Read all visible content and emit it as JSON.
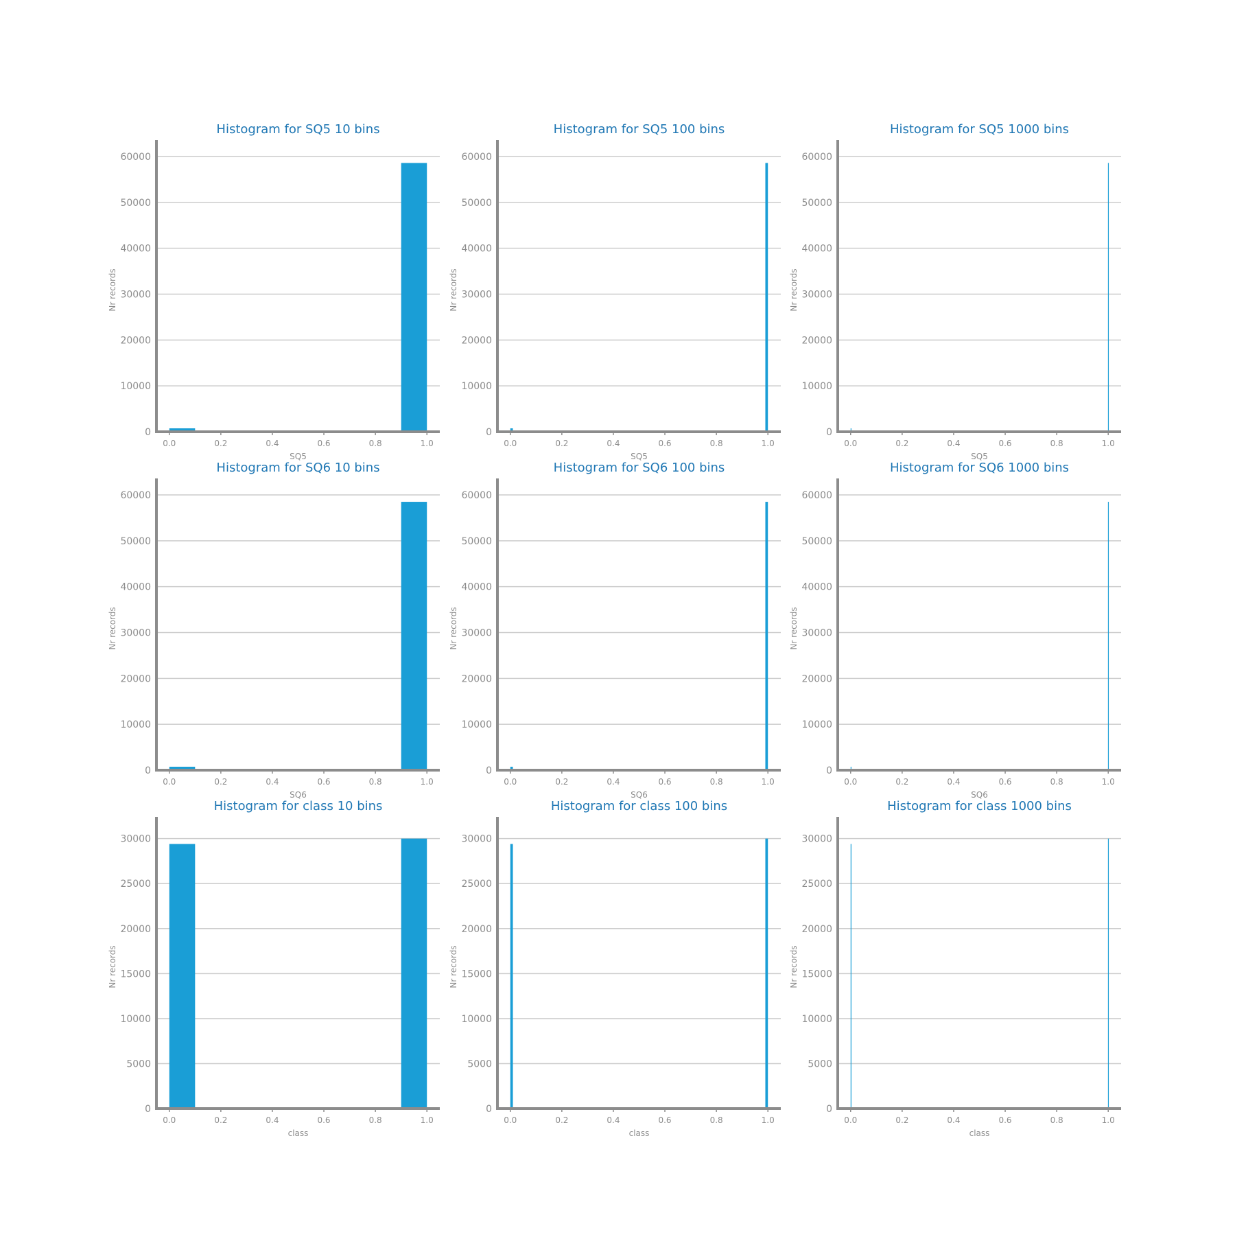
{
  "colors": {
    "bar": "#1a9ed6",
    "title": "#1f77b4",
    "axis": "#8c8c8c",
    "grid": "#cccccc",
    "tick_text": "#8c8c8c"
  },
  "chart_data": [
    {
      "type": "bar",
      "title": "Histogram for SQ5 10 bins",
      "xlabel": "SQ5",
      "ylabel": "Nr records",
      "xlim": [
        -0.05,
        1.05
      ],
      "ylim": [
        0,
        61800
      ],
      "xticks": [
        "0.0",
        "0.2",
        "0.4",
        "0.6",
        "0.8",
        "1.0"
      ],
      "yticks": [
        "0",
        "10000",
        "20000",
        "30000",
        "40000",
        "50000",
        "60000"
      ],
      "grid": true,
      "bins": [
        {
          "x0": 0.0,
          "x1": 0.1,
          "count": 750
        },
        {
          "x0": 0.9,
          "x1": 1.0,
          "count": 58600
        }
      ]
    },
    {
      "type": "bar",
      "title": "Histogram for SQ5 100 bins",
      "xlabel": "SQ5",
      "ylabel": "Nr records",
      "xlim": [
        -0.05,
        1.05
      ],
      "ylim": [
        0,
        61800
      ],
      "xticks": [
        "0.0",
        "0.2",
        "0.4",
        "0.6",
        "0.8",
        "1.0"
      ],
      "yticks": [
        "0",
        "10000",
        "20000",
        "30000",
        "40000",
        "50000",
        "60000"
      ],
      "grid": true,
      "bins": [
        {
          "x0": 0.0,
          "x1": 0.01,
          "count": 750
        },
        {
          "x0": 0.99,
          "x1": 1.0,
          "count": 58600
        }
      ]
    },
    {
      "type": "bar",
      "title": "Histogram for SQ5 1000 bins",
      "xlabel": "SQ5",
      "ylabel": "Nr records",
      "xlim": [
        -0.05,
        1.05
      ],
      "ylim": [
        0,
        61800
      ],
      "xticks": [
        "0.0",
        "0.2",
        "0.4",
        "0.6",
        "0.8",
        "1.0"
      ],
      "yticks": [
        "0",
        "10000",
        "20000",
        "30000",
        "40000",
        "50000",
        "60000"
      ],
      "grid": true,
      "bins": [
        {
          "x0": 0.0,
          "x1": 0.001,
          "count": 750
        },
        {
          "x0": 0.999,
          "x1": 1.0,
          "count": 58600
        }
      ]
    },
    {
      "type": "bar",
      "title": "Histogram for SQ6 10 bins",
      "xlabel": "SQ6",
      "ylabel": "Nr records",
      "xlim": [
        -0.05,
        1.05
      ],
      "ylim": [
        0,
        61800
      ],
      "xticks": [
        "0.0",
        "0.2",
        "0.4",
        "0.6",
        "0.8",
        "1.0"
      ],
      "yticks": [
        "0",
        "10000",
        "20000",
        "30000",
        "40000",
        "50000",
        "60000"
      ],
      "grid": true,
      "bins": [
        {
          "x0": 0.0,
          "x1": 0.1,
          "count": 750
        },
        {
          "x0": 0.9,
          "x1": 1.0,
          "count": 58500
        }
      ]
    },
    {
      "type": "bar",
      "title": "Histogram for SQ6 100 bins",
      "xlabel": "SQ6",
      "ylabel": "Nr records",
      "xlim": [
        -0.05,
        1.05
      ],
      "ylim": [
        0,
        61800
      ],
      "xticks": [
        "0.0",
        "0.2",
        "0.4",
        "0.6",
        "0.8",
        "1.0"
      ],
      "yticks": [
        "0",
        "10000",
        "20000",
        "30000",
        "40000",
        "50000",
        "60000"
      ],
      "grid": true,
      "bins": [
        {
          "x0": 0.0,
          "x1": 0.01,
          "count": 750
        },
        {
          "x0": 0.99,
          "x1": 1.0,
          "count": 58500
        }
      ]
    },
    {
      "type": "bar",
      "title": "Histogram for SQ6 1000 bins",
      "xlabel": "SQ6",
      "ylabel": "Nr records",
      "xlim": [
        -0.05,
        1.05
      ],
      "ylim": [
        0,
        61800
      ],
      "xticks": [
        "0.0",
        "0.2",
        "0.4",
        "0.6",
        "0.8",
        "1.0"
      ],
      "yticks": [
        "0",
        "10000",
        "20000",
        "30000",
        "40000",
        "50000",
        "60000"
      ],
      "grid": true,
      "bins": [
        {
          "x0": 0.0,
          "x1": 0.001,
          "count": 750
        },
        {
          "x0": 0.999,
          "x1": 1.0,
          "count": 58500
        }
      ]
    },
    {
      "type": "bar",
      "title": "Histogram for class 10 bins",
      "xlabel": "class",
      "ylabel": "Nr records",
      "xlim": [
        -0.05,
        1.05
      ],
      "ylim": [
        0,
        31500
      ],
      "xticks": [
        "0.0",
        "0.2",
        "0.4",
        "0.6",
        "0.8",
        "1.0"
      ],
      "yticks": [
        "0",
        "5000",
        "10000",
        "15000",
        "20000",
        "25000",
        "30000"
      ],
      "grid": true,
      "bins": [
        {
          "x0": 0.0,
          "x1": 0.1,
          "count": 29400
        },
        {
          "x0": 0.9,
          "x1": 1.0,
          "count": 30000
        }
      ]
    },
    {
      "type": "bar",
      "title": "Histogram for class 100 bins",
      "xlabel": "class",
      "ylabel": "Nr records",
      "xlim": [
        -0.05,
        1.05
      ],
      "ylim": [
        0,
        31500
      ],
      "xticks": [
        "0.0",
        "0.2",
        "0.4",
        "0.6",
        "0.8",
        "1.0"
      ],
      "yticks": [
        "0",
        "5000",
        "10000",
        "15000",
        "20000",
        "25000",
        "30000"
      ],
      "grid": true,
      "bins": [
        {
          "x0": 0.0,
          "x1": 0.01,
          "count": 29400
        },
        {
          "x0": 0.99,
          "x1": 1.0,
          "count": 30000
        }
      ]
    },
    {
      "type": "bar",
      "title": "Histogram for class 1000 bins",
      "xlabel": "class",
      "ylabel": "Nr records",
      "xlim": [
        -0.05,
        1.05
      ],
      "ylim": [
        0,
        31500
      ],
      "xticks": [
        "0.0",
        "0.2",
        "0.4",
        "0.6",
        "0.8",
        "1.0"
      ],
      "yticks": [
        "0",
        "5000",
        "10000",
        "15000",
        "20000",
        "25000",
        "30000"
      ],
      "grid": true,
      "bins": [
        {
          "x0": 0.0,
          "x1": 0.001,
          "count": 29400
        },
        {
          "x0": 0.999,
          "x1": 1.0,
          "count": 30000
        }
      ]
    }
  ]
}
